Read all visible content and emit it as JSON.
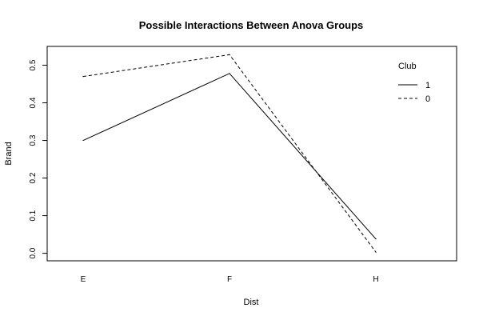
{
  "chart_data": {
    "type": "line",
    "title": "Possible Interactions Between Anova Groups",
    "xlabel": "Dist",
    "ylabel": "Brand",
    "categories": [
      "E",
      "F",
      "H"
    ],
    "ylim": [
      -0.02,
      0.55
    ],
    "yticks": [
      "0.0",
      "0.1",
      "0.2",
      "0.3",
      "0.4",
      "0.5"
    ],
    "grid": false,
    "legend": {
      "title": "Club",
      "placement": "top-right"
    },
    "series": [
      {
        "name": "1",
        "values": [
          0.3,
          0.478,
          0.038
        ],
        "line_style": "solid",
        "color": "#000000"
      },
      {
        "name": "0",
        "values": [
          0.47,
          0.528,
          0.003
        ],
        "line_style": "dashed",
        "color": "#000000"
      }
    ]
  }
}
